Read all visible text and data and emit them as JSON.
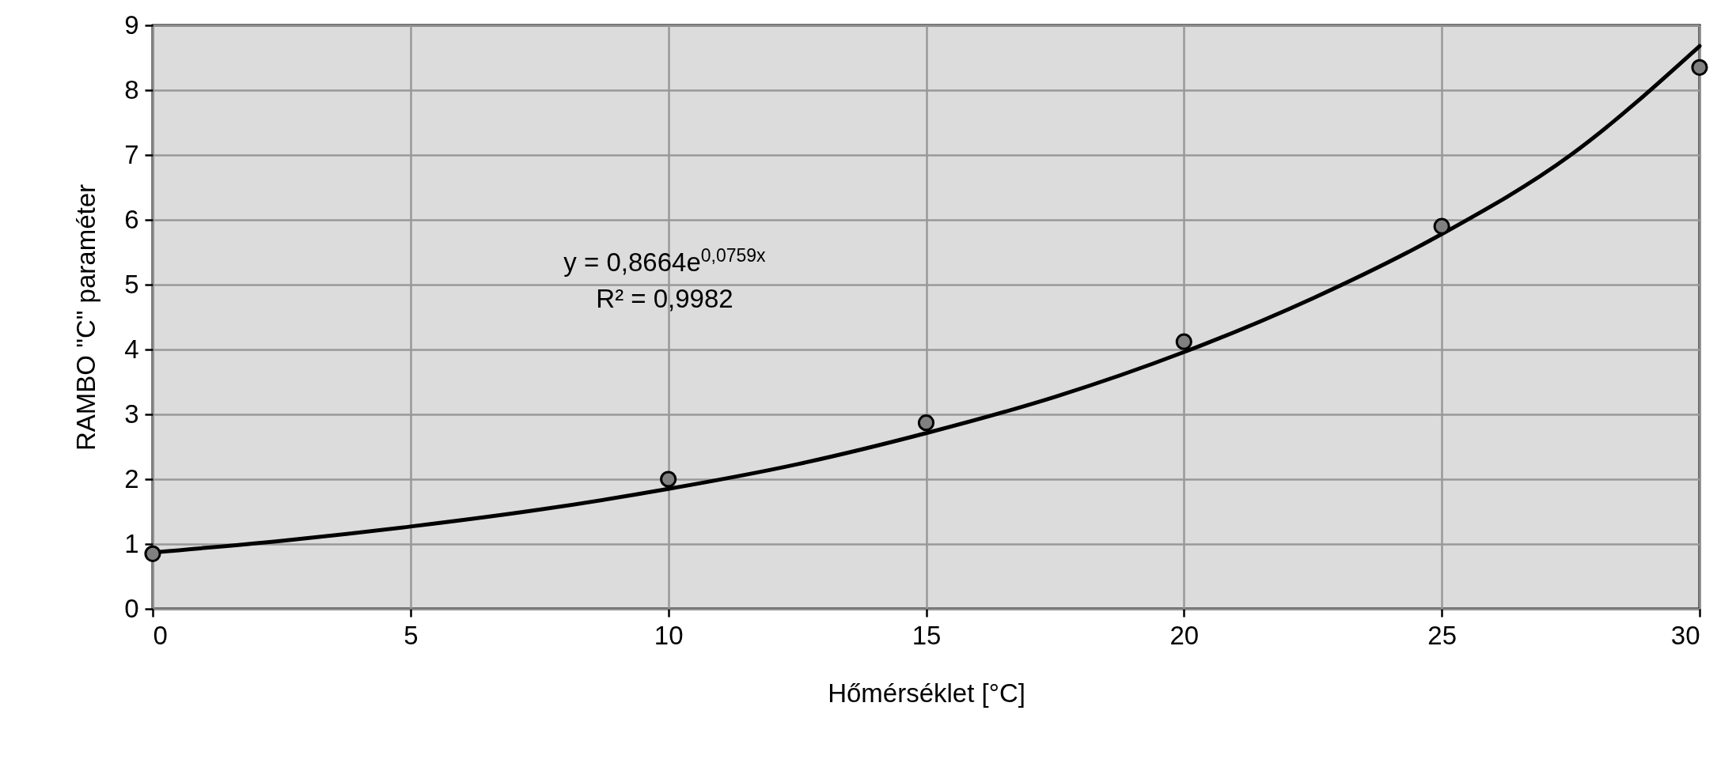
{
  "chart_data": {
    "type": "scatter",
    "xlabel": "Hőmérséklet [°C]",
    "ylabel": "RAMBO \"C\" paraméter",
    "xlim": [
      0,
      30
    ],
    "xticks": [
      0,
      5,
      10,
      15,
      20,
      25,
      30
    ],
    "ylim": [
      0,
      9
    ],
    "yticks": [
      0,
      1,
      2,
      3,
      4,
      5,
      6,
      7,
      8,
      9
    ],
    "grid": true,
    "marker": "circle",
    "series": [
      {
        "color": "#808080",
        "x": [
          0,
          10,
          15,
          20,
          25,
          30
        ],
        "values": [
          0.85,
          2.0,
          2.87,
          4.12,
          5.9,
          8.35
        ]
      },
      {
        "type": "line",
        "color": "#000000",
        "marker": "none",
        "x": [
          0,
          2.5,
          5,
          7.5,
          10,
          12.5,
          15,
          17.5,
          20,
          22.5,
          25,
          27.5,
          30
        ],
        "values": [
          0.87,
          1.05,
          1.27,
          1.53,
          1.85,
          2.23,
          2.71,
          3.27,
          3.96,
          4.79,
          5.78,
          7.0,
          8.68
        ]
      }
    ],
    "annotations": [
      "y = 0,8664e$^{0,0759x}$",
      "R² = 0,9982"
    ]
  }
}
